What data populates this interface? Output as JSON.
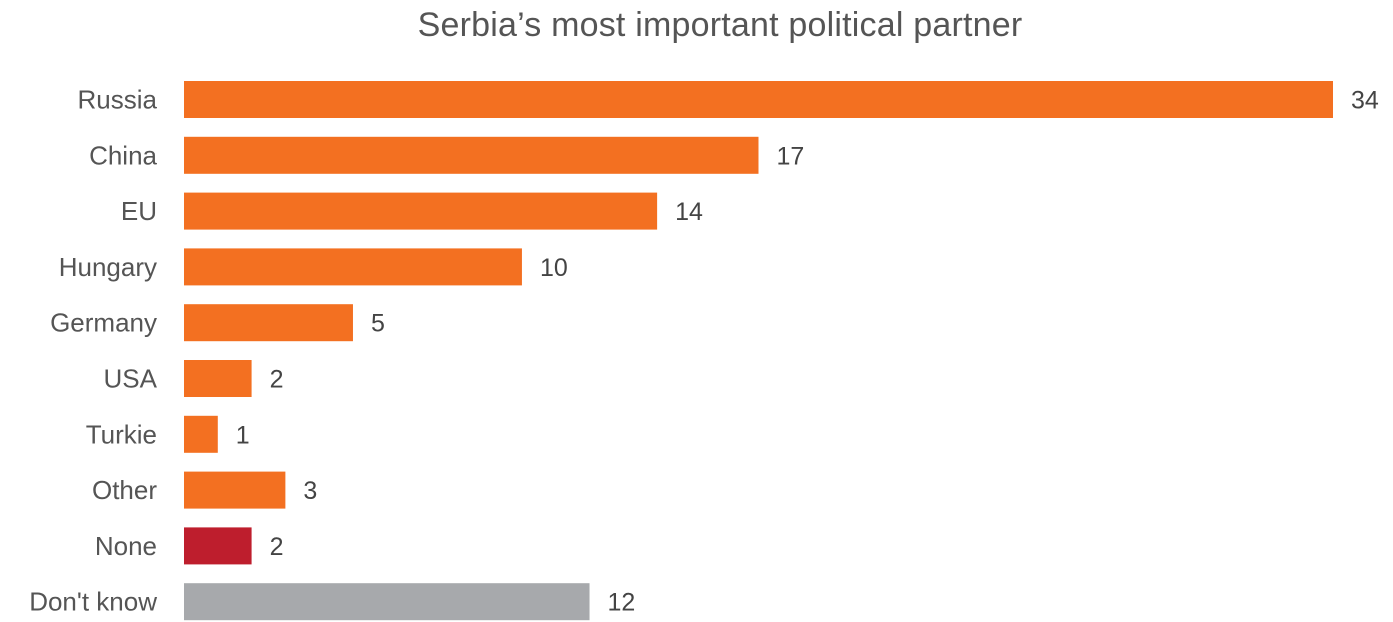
{
  "chart_data": {
    "type": "bar",
    "orientation": "horizontal",
    "title": "Serbia’s most important political partner",
    "categories": [
      "Russia",
      "China",
      "EU",
      "Hungary",
      "Germany",
      "USA",
      "Turkie",
      "Other",
      "None",
      "Don't know"
    ],
    "values": [
      34,
      17,
      14,
      10,
      5,
      2,
      1,
      3,
      2,
      12
    ],
    "bar_colors": [
      "#f37021",
      "#f37021",
      "#f37021",
      "#f37021",
      "#f37021",
      "#f37021",
      "#f37021",
      "#f37021",
      "#be1e2d",
      "#a7a9ac"
    ],
    "xlim": [
      0,
      34
    ],
    "grid": false,
    "legend": "none",
    "data_labels": true
  }
}
